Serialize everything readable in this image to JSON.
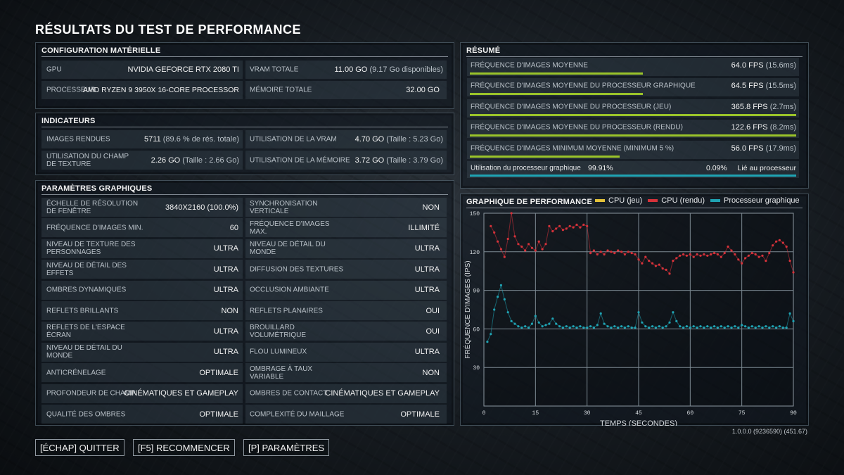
{
  "title": "RÉSULTATS DU TEST DE PERFORMANCE",
  "hardware": {
    "title": "CONFIGURATION MATÉRIELLE",
    "gpu_label": "GPU",
    "gpu_value": "NVIDIA GEFORCE RTX 2080 TI",
    "vram_label": "VRAM TOTALE",
    "vram_value": "11.00 GO",
    "vram_sub": "(9.17 Go disponibles)",
    "cpu_label": "PROCESSEUR",
    "cpu_value": "AMD RYZEN 9 3950X 16-CORE PROCESSOR",
    "mem_label": "MÉMOIRE TOTALE",
    "mem_value": "32.00 GO"
  },
  "indicators": {
    "title": "INDICATEURS",
    "images_label": "IMAGES RENDUES",
    "images_value": "5711",
    "images_sub": "(89.6 % de rés. totale)",
    "vram_label": "UTILISATION DE LA VRAM",
    "vram_value": "4.70 GO",
    "vram_sub": "(Taille : 5.23 Go)",
    "tex_label": "UTILISATION DU CHAMP DE TEXTURE",
    "tex_value": "2.26 GO",
    "tex_sub": "(Taille : 2.66 Go)",
    "mem_label": "UTILISATION DE LA MÉMOIRE",
    "mem_value": "3.72 GO",
    "mem_sub": "(Taille : 3.79 Go)"
  },
  "graphics": {
    "title": "PARAMÈTRES GRAPHIQUES",
    "left": [
      {
        "label": "ÉCHELLE DE RÉSOLUTION DE FENÊTRE",
        "value": "3840X2160 (100.0%)"
      },
      {
        "label": "FRÉQUENCE D'IMAGES MIN.",
        "value": "60"
      },
      {
        "label": "NIVEAU DE TEXTURE DES PERSONNAGES",
        "value": "ULTRA"
      },
      {
        "label": "NIVEAU DE DÉTAIL DES EFFETS",
        "value": "ULTRA"
      },
      {
        "label": "OMBRES DYNAMIQUES",
        "value": "ULTRA"
      },
      {
        "label": "REFLETS BRILLANTS",
        "value": "NON"
      },
      {
        "label": "REFLETS DE L'ESPACE ÉCRAN",
        "value": "ULTRA"
      },
      {
        "label": "NIVEAU DE DÉTAIL DU MONDE",
        "value": "ULTRA"
      },
      {
        "label": "ANTICRÉNELAGE",
        "value": "OPTIMALE"
      },
      {
        "label": "PROFONDEUR DE CHAMP",
        "value": "CINÉMATIQUES ET GAMEPLAY"
      },
      {
        "label": "QUALITÉ DES OMBRES",
        "value": "OPTIMALE"
      }
    ],
    "right": [
      {
        "label": "SYNCHRONISATION VERTICALE",
        "value": "NON"
      },
      {
        "label": "FRÉQUENCE D'IMAGES MAX.",
        "value": "ILLIMITÉ"
      },
      {
        "label": "NIVEAU DE DÉTAIL DU MONDE",
        "value": "ULTRA"
      },
      {
        "label": "DIFFUSION DES TEXTURES",
        "value": "ULTRA"
      },
      {
        "label": "OCCLUSION AMBIANTE",
        "value": "ULTRA"
      },
      {
        "label": "REFLETS PLANAIRES",
        "value": "OUI"
      },
      {
        "label": "BROUILLARD VOLUMÉTRIQUE",
        "value": "OUI"
      },
      {
        "label": "FLOU LUMINEUX",
        "value": "ULTRA"
      },
      {
        "label": "OMBRAGE À TAUX VARIABLE",
        "value": "NON"
      },
      {
        "label": "OMBRES DE CONTACT",
        "value": "CINÉMATIQUES ET GAMEPLAY"
      },
      {
        "label": "COMPLEXITÉ DU MAILLAGE",
        "value": "OPTIMALE"
      }
    ]
  },
  "summary": {
    "title": "RÉSUMÉ",
    "rows": [
      {
        "label": "FRÉQUENCE D'IMAGES MOYENNE",
        "value": "64.0 FPS",
        "sub": "(15.6ms)",
        "bar": 0.53
      },
      {
        "label": "FRÉQUENCE D'IMAGES MOYENNE DU PROCESSEUR GRAPHIQUE",
        "value": "64.5 FPS",
        "sub": "(15.5ms)",
        "bar": 0.53
      },
      {
        "label": "FRÉQUENCE D'IMAGES MOYENNE DU PROCESSEUR (JEU)",
        "value": "365.8 FPS",
        "sub": "(2.7ms)",
        "bar": 1.0
      },
      {
        "label": "FRÉQUENCE D'IMAGES MOYENNE DU PROCESSEUR (RENDU)",
        "value": "122.6 FPS",
        "sub": "(8.2ms)",
        "bar": 1.0
      },
      {
        "label": "FRÉQUENCE D'IMAGES MINIMUM MOYENNE (MINIMUM 5 %)",
        "value": "56.0 FPS",
        "sub": "(17.9ms)",
        "bar": 0.46
      }
    ],
    "util_label": "Utilisation du processeur graphique",
    "util_value": "99.91%",
    "bound_value": "0.09%",
    "bound_label": "Lié au processeur",
    "util_fraction": 0.9991
  },
  "chart_data": {
    "type": "scatter",
    "title": "GRAPHIQUE DE PERFORMANCE",
    "xlabel": "TEMPS (SECONDES)",
    "ylabel": "FRÉQUENCE D'IMAGES (IPS)",
    "xlim": [
      0,
      90
    ],
    "ylim": [
      0,
      150
    ],
    "xticks": [
      "0",
      "15",
      "30",
      "45",
      "60",
      "75",
      "90"
    ],
    "yticks": [
      "30",
      "60",
      "90",
      "120",
      "150"
    ],
    "colors": {
      "cpu_game": "#e3c23a",
      "cpu_render": "#d6323a",
      "gpu": "#1fa3b3"
    },
    "series": [
      {
        "name": "CPU (jeu)",
        "key": "cpu_game",
        "points": []
      },
      {
        "name": "CPU (rendu)",
        "key": "cpu_render",
        "points": [
          [
            2,
            140
          ],
          [
            3,
            135
          ],
          [
            4,
            128
          ],
          [
            5,
            122
          ],
          [
            6,
            116
          ],
          [
            7,
            130
          ],
          [
            8,
            150
          ],
          [
            9,
            132
          ],
          [
            10,
            126
          ],
          [
            11,
            124
          ],
          [
            12,
            121
          ],
          [
            13,
            126
          ],
          [
            14,
            123
          ],
          [
            15,
            121
          ],
          [
            16,
            128
          ],
          [
            17,
            122
          ],
          [
            18,
            126
          ],
          [
            19,
            140
          ],
          [
            20,
            136
          ],
          [
            21,
            138
          ],
          [
            22,
            140
          ],
          [
            23,
            137
          ],
          [
            24,
            138
          ],
          [
            25,
            140
          ],
          [
            26,
            139
          ],
          [
            27,
            141
          ],
          [
            28,
            139
          ],
          [
            29,
            141
          ],
          [
            30,
            140
          ],
          [
            31,
            119
          ],
          [
            32,
            121
          ],
          [
            33,
            118
          ],
          [
            34,
            120
          ],
          [
            35,
            118
          ],
          [
            36,
            121
          ],
          [
            37,
            120
          ],
          [
            38,
            119
          ],
          [
            39,
            121
          ],
          [
            40,
            120
          ],
          [
            41,
            118
          ],
          [
            42,
            120
          ],
          [
            43,
            119
          ],
          [
            44,
            118
          ],
          [
            45,
            114
          ],
          [
            46,
            111
          ],
          [
            47,
            116
          ],
          [
            48,
            113
          ],
          [
            49,
            111
          ],
          [
            50,
            109
          ],
          [
            51,
            110
          ],
          [
            52,
            107
          ],
          [
            53,
            106
          ],
          [
            54,
            103
          ],
          [
            55,
            113
          ],
          [
            56,
            115
          ],
          [
            57,
            117
          ],
          [
            58,
            118
          ],
          [
            59,
            117
          ],
          [
            60,
            118
          ],
          [
            61,
            116
          ],
          [
            62,
            118
          ],
          [
            63,
            117
          ],
          [
            64,
            118
          ],
          [
            65,
            117
          ],
          [
            66,
            118
          ],
          [
            67,
            119
          ],
          [
            68,
            118
          ],
          [
            69,
            116
          ],
          [
            70,
            119
          ],
          [
            71,
            124
          ],
          [
            72,
            121
          ],
          [
            73,
            118
          ],
          [
            74,
            114
          ],
          [
            75,
            111
          ],
          [
            76,
            115
          ],
          [
            77,
            117
          ],
          [
            78,
            119
          ],
          [
            79,
            118
          ],
          [
            80,
            116
          ],
          [
            81,
            117
          ],
          [
            82,
            113
          ],
          [
            83,
            119
          ],
          [
            84,
            125
          ],
          [
            85,
            128
          ],
          [
            86,
            129
          ],
          [
            87,
            127
          ],
          [
            88,
            124
          ],
          [
            89,
            113
          ],
          [
            90,
            104
          ]
        ]
      },
      {
        "name": "Processeur graphique",
        "key": "gpu",
        "points": [
          [
            1,
            50
          ],
          [
            2,
            56
          ],
          [
            3,
            75
          ],
          [
            4,
            85
          ],
          [
            5,
            94
          ],
          [
            6,
            83
          ],
          [
            7,
            73
          ],
          [
            8,
            66
          ],
          [
            9,
            64
          ],
          [
            10,
            62
          ],
          [
            11,
            61
          ],
          [
            12,
            62
          ],
          [
            13,
            61
          ],
          [
            14,
            64
          ],
          [
            15,
            70
          ],
          [
            16,
            65
          ],
          [
            17,
            62
          ],
          [
            18,
            63
          ],
          [
            19,
            64
          ],
          [
            20,
            68
          ],
          [
            21,
            64
          ],
          [
            22,
            62
          ],
          [
            23,
            61
          ],
          [
            24,
            62
          ],
          [
            25,
            61
          ],
          [
            26,
            62
          ],
          [
            27,
            61
          ],
          [
            28,
            62
          ],
          [
            29,
            61
          ],
          [
            30,
            61
          ],
          [
            31,
            62
          ],
          [
            32,
            61
          ],
          [
            33,
            63
          ],
          [
            34,
            72
          ],
          [
            35,
            64
          ],
          [
            36,
            62
          ],
          [
            37,
            61
          ],
          [
            38,
            62
          ],
          [
            39,
            61
          ],
          [
            40,
            62
          ],
          [
            41,
            61
          ],
          [
            42,
            62
          ],
          [
            43,
            61
          ],
          [
            44,
            61
          ],
          [
            45,
            73
          ],
          [
            46,
            65
          ],
          [
            47,
            62
          ],
          [
            48,
            61
          ],
          [
            49,
            62
          ],
          [
            50,
            61
          ],
          [
            51,
            62
          ],
          [
            52,
            61
          ],
          [
            53,
            62
          ],
          [
            54,
            65
          ],
          [
            55,
            73
          ],
          [
            56,
            66
          ],
          [
            57,
            62
          ],
          [
            58,
            61
          ],
          [
            59,
            62
          ],
          [
            60,
            61
          ],
          [
            61,
            62
          ],
          [
            62,
            61
          ],
          [
            63,
            62
          ],
          [
            64,
            61
          ],
          [
            65,
            62
          ],
          [
            66,
            61
          ],
          [
            67,
            62
          ],
          [
            68,
            61
          ],
          [
            69,
            62
          ],
          [
            70,
            61
          ],
          [
            71,
            62
          ],
          [
            72,
            61
          ],
          [
            73,
            62
          ],
          [
            74,
            61
          ],
          [
            75,
            63
          ],
          [
            76,
            62
          ],
          [
            77,
            61
          ],
          [
            78,
            62
          ],
          [
            79,
            61
          ],
          [
            80,
            62
          ],
          [
            81,
            61
          ],
          [
            82,
            62
          ],
          [
            83,
            61
          ],
          [
            84,
            62
          ],
          [
            85,
            61
          ],
          [
            86,
            62
          ],
          [
            87,
            61
          ],
          [
            88,
            61
          ],
          [
            89,
            72
          ],
          [
            90,
            66
          ]
        ]
      }
    ],
    "legend": "top-right"
  },
  "footer": {
    "version": "1.0.0.0 (9236590) (451.67)",
    "buttons": [
      "[ÉCHAP] QUITTER",
      "[F5] RECOMMENCER",
      "[P] PARAMÈTRES"
    ]
  }
}
